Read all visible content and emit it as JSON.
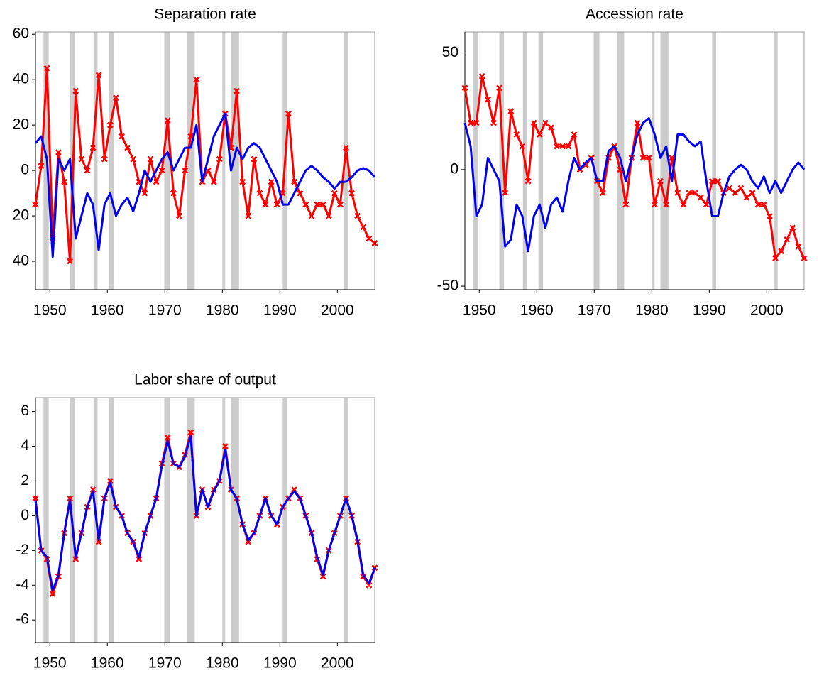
{
  "chart_data": [
    {
      "type": "line",
      "title": "Separation rate",
      "x": [
        1947.5,
        1948.5,
        1949.5,
        1950.5,
        1951.5,
        1952.5,
        1953.5,
        1954.5,
        1955.5,
        1956.5,
        1957.5,
        1958.5,
        1959.5,
        1960.5,
        1961.5,
        1962.5,
        1963.5,
        1964.5,
        1965.5,
        1966.5,
        1967.5,
        1968.5,
        1969.5,
        1970.5,
        1971.5,
        1972.5,
        1973.5,
        1974.5,
        1975.5,
        1976.5,
        1977.5,
        1978.5,
        1979.5,
        1980.5,
        1981.5,
        1982.5,
        1983.5,
        1984.5,
        1985.5,
        1986.5,
        1987.5,
        1988.5,
        1989.5,
        1990.5,
        1991.5,
        1992.5,
        1993.5,
        1994.5,
        1995.5,
        1996.5,
        1997.5,
        1998.5,
        1999.5,
        2000.5,
        2001.5,
        2002.5,
        2003.5,
        2004.5,
        2005.5,
        2006.5
      ],
      "series": [
        {
          "color": "#ff0000",
          "marker": "x",
          "values": [
            -15,
            2,
            45,
            -30,
            8,
            -5,
            -40,
            35,
            5,
            0,
            10,
            42,
            5,
            20,
            32,
            15,
            10,
            5,
            -5,
            -10,
            5,
            -5,
            0,
            22,
            -10,
            -20,
            0,
            15,
            40,
            -5,
            0,
            -5,
            5,
            25,
            10,
            35,
            -5,
            -20,
            5,
            -10,
            -15,
            -5,
            -15,
            -10,
            25,
            -5,
            -10,
            -15,
            -20,
            -15,
            -15,
            -20,
            -10,
            -15,
            10,
            -10,
            -20,
            -25,
            -30,
            -32
          ]
        },
        {
          "color": "#0000ee",
          "values": [
            12,
            15,
            5,
            -38,
            5,
            0,
            5,
            -30,
            -20,
            -10,
            -15,
            -35,
            -15,
            -10,
            -20,
            -15,
            -12,
            -18,
            -10,
            0,
            -5,
            0,
            5,
            8,
            0,
            5,
            10,
            10,
            20,
            -5,
            5,
            15,
            20,
            25,
            0,
            10,
            5,
            10,
            12,
            10,
            5,
            0,
            -5,
            -15,
            -15,
            -10,
            -5,
            0,
            2,
            0,
            -3,
            -5,
            -8,
            -5,
            -5,
            -3,
            0,
            1,
            0,
            -3
          ]
        }
      ],
      "xlim": [
        1947.5,
        2006.5
      ],
      "xticks": [
        1950,
        1960,
        1970,
        1980,
        1990,
        2000
      ],
      "ylim": [
        -52.5,
        61
      ],
      "yticks": [
        60,
        40,
        20,
        0,
        {
          "value": -20,
          "label": "20"
        },
        {
          "value": -40,
          "label": "40"
        }
      ],
      "recessions": [
        [
          1948.9,
          1949.8
        ],
        [
          1953.5,
          1954.3
        ],
        [
          1957.6,
          1958.3
        ],
        [
          1960.3,
          1961.1
        ],
        [
          1969.9,
          1970.9
        ],
        [
          1973.9,
          1975.2
        ],
        [
          1980.0,
          1980.5
        ],
        [
          1981.5,
          1982.9
        ],
        [
          1990.5,
          1991.2
        ],
        [
          2001.2,
          2001.9
        ]
      ],
      "recession_color": "#cccccc"
    },
    {
      "type": "line",
      "title": "Accession rate",
      "x": [
        1947.5,
        1948.5,
        1949.5,
        1950.5,
        1951.5,
        1952.5,
        1953.5,
        1954.5,
        1955.5,
        1956.5,
        1957.5,
        1958.5,
        1959.5,
        1960.5,
        1961.5,
        1962.5,
        1963.5,
        1964.5,
        1965.5,
        1966.5,
        1967.5,
        1968.5,
        1969.5,
        1970.5,
        1971.5,
        1972.5,
        1973.5,
        1974.5,
        1975.5,
        1976.5,
        1977.5,
        1978.5,
        1979.5,
        1980.5,
        1981.5,
        1982.5,
        1983.5,
        1984.5,
        1985.5,
        1986.5,
        1987.5,
        1988.5,
        1989.5,
        1990.5,
        1991.5,
        1992.5,
        1993.5,
        1994.5,
        1995.5,
        1996.5,
        1997.5,
        1998.5,
        1999.5,
        2000.5,
        2001.5,
        2002.5,
        2003.5,
        2004.5,
        2005.5,
        2006.5
      ],
      "series": [
        {
          "color": "#ff0000",
          "marker": "x",
          "values": [
            35,
            20,
            20,
            40,
            30,
            20,
            35,
            -10,
            25,
            15,
            10,
            -5,
            20,
            15,
            20,
            18,
            10,
            10,
            10,
            15,
            0,
            2,
            5,
            -5,
            -10,
            5,
            10,
            0,
            -15,
            5,
            20,
            5,
            5,
            -15,
            -5,
            -15,
            5,
            -10,
            -15,
            -10,
            -10,
            -12,
            -15,
            -5,
            -5,
            -10,
            -8,
            -10,
            -8,
            -12,
            -10,
            -15,
            -15,
            -20,
            -38,
            -35,
            -30,
            -25,
            -33,
            -38
          ]
        },
        {
          "color": "#0000ee",
          "values": [
            20,
            10,
            -20,
            -15,
            5,
            0,
            -5,
            -33,
            -30,
            -15,
            -20,
            -35,
            -20,
            -15,
            -25,
            -15,
            -12,
            -18,
            -5,
            5,
            0,
            3,
            5,
            -5,
            -5,
            8,
            10,
            5,
            -5,
            5,
            15,
            20,
            22,
            15,
            5,
            10,
            -5,
            15,
            15,
            12,
            10,
            12,
            -5,
            -20,
            -20,
            -10,
            -3,
            0,
            2,
            0,
            -5,
            -8,
            -3,
            -10,
            -5,
            -10,
            -5,
            0,
            3,
            0
          ]
        }
      ],
      "xlim": [
        1947.5,
        2006.5
      ],
      "xticks": [
        1950,
        1960,
        1970,
        1980,
        1990,
        2000
      ],
      "ylim": [
        -51.5,
        59
      ],
      "yticks": [
        50,
        0,
        -50
      ],
      "recessions": [
        [
          1948.9,
          1949.8
        ],
        [
          1953.5,
          1954.3
        ],
        [
          1957.6,
          1958.3
        ],
        [
          1960.3,
          1961.1
        ],
        [
          1969.9,
          1970.9
        ],
        [
          1973.9,
          1975.2
        ],
        [
          1980.0,
          1980.5
        ],
        [
          1981.5,
          1982.9
        ],
        [
          1990.5,
          1991.2
        ],
        [
          2001.2,
          2001.9
        ]
      ],
      "recession_color": "#cccccc"
    },
    {
      "type": "line",
      "title": "Labor share of output",
      "x": [
        1947.5,
        1948.5,
        1949.5,
        1950.5,
        1951.5,
        1952.5,
        1953.5,
        1954.5,
        1955.5,
        1956.5,
        1957.5,
        1958.5,
        1959.5,
        1960.5,
        1961.5,
        1962.5,
        1963.5,
        1964.5,
        1965.5,
        1966.5,
        1967.5,
        1968.5,
        1969.5,
        1970.5,
        1971.5,
        1972.5,
        1973.5,
        1974.5,
        1975.5,
        1976.5,
        1977.5,
        1978.5,
        1979.5,
        1980.5,
        1981.5,
        1982.5,
        1983.5,
        1984.5,
        1985.5,
        1986.5,
        1987.5,
        1988.5,
        1989.5,
        1990.5,
        1991.5,
        1992.5,
        1993.5,
        1994.5,
        1995.5,
        1996.5,
        1997.5,
        1998.5,
        1999.5,
        2000.5,
        2001.5,
        2002.5,
        2003.5,
        2004.5,
        2005.5,
        2006.5
      ],
      "series": [
        {
          "color": "#ff0000",
          "marker": "x",
          "values": [
            1,
            -2,
            -2.5,
            -4.5,
            -3.5,
            -1,
            1,
            -2.5,
            -1,
            0.5,
            1.5,
            -1.5,
            1,
            2,
            0.5,
            0,
            -1,
            -1.5,
            -2.5,
            -1,
            0,
            1,
            3,
            4.5,
            3,
            2.8,
            3.5,
            4.8,
            0,
            1.5,
            0.5,
            1.5,
            2,
            4,
            1.5,
            1,
            -0.5,
            -1.5,
            -1,
            0,
            1,
            0,
            -0.5,
            0.5,
            1,
            1.5,
            1,
            0,
            -1,
            -2.5,
            -3.5,
            -2,
            -1,
            0,
            1,
            0,
            -1.5,
            -3.5,
            -4,
            -3
          ]
        },
        {
          "color": "#0000ee",
          "values": [
            0.9,
            -2,
            -2.4,
            -4.3,
            -3.4,
            -1,
            0.9,
            -2.4,
            -1,
            0.5,
            1.4,
            -1.4,
            1,
            1.9,
            0.5,
            0,
            -1,
            -1.5,
            -2.4,
            -1,
            0,
            1,
            2.9,
            4.3,
            3,
            2.8,
            3.4,
            4.6,
            0,
            1.5,
            0.5,
            1.4,
            2,
            3.8,
            1.5,
            1,
            -0.5,
            -1.4,
            -1,
            0,
            1,
            0,
            -0.5,
            0.5,
            1,
            1.4,
            1,
            0,
            -1,
            -2.4,
            -3.4,
            -2,
            -1,
            0,
            1,
            0,
            -1.4,
            -3.4,
            -3.9,
            -3
          ]
        }
      ],
      "xlim": [
        1947.5,
        2006.5
      ],
      "xticks": [
        1950,
        1960,
        1970,
        1980,
        1990,
        2000
      ],
      "ylim": [
        -7.3,
        6.8
      ],
      "yticks": [
        6,
        4,
        2,
        0,
        -2,
        -4,
        -6
      ],
      "recessions": [
        [
          1948.9,
          1949.8
        ],
        [
          1953.5,
          1954.3
        ],
        [
          1957.6,
          1958.3
        ],
        [
          1960.3,
          1961.1
        ],
        [
          1969.9,
          1970.9
        ],
        [
          1973.9,
          1975.2
        ],
        [
          1980.0,
          1980.5
        ],
        [
          1981.5,
          1982.9
        ],
        [
          1990.5,
          1991.2
        ],
        [
          2001.2,
          2001.9
        ]
      ],
      "recession_color": "#cccccc"
    }
  ]
}
